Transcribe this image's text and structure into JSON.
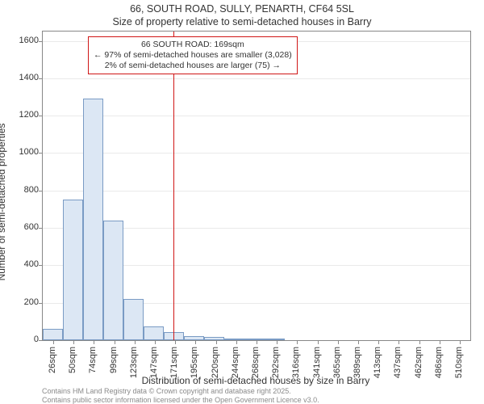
{
  "title_main": "66, SOUTH ROAD, SULLY, PENARTH, CF64 5SL",
  "title_sub": "Size of property relative to semi-detached houses in Barry",
  "ylabel": "Number of semi-detached properties",
  "xlabel": "Distribution of semi-detached houses by size in Barry",
  "footer_line1": "Contains HM Land Registry data © Crown copyright and database right 2025.",
  "footer_line2": "Contains public sector information licensed under the Open Government Licence v3.0.",
  "annotation": {
    "line1": "66 SOUTH ROAD: 169sqm",
    "line2": "← 97% of semi-detached houses are smaller (3,028)",
    "line3": "2% of semi-detached houses are larger (75) →"
  },
  "histogram": {
    "type": "histogram",
    "bar_fill": "#dce7f4",
    "bar_stroke": "#7a9bc4",
    "background_color": "#ffffff",
    "grid_color": "#888888",
    "grid_opacity": 0.18,
    "ref_line_color": "#d01616",
    "ref_line_x": 169,
    "xlim": [
      14,
      522
    ],
    "ylim": [
      0,
      1650
    ],
    "ytick_step": 200,
    "yticks": [
      0,
      200,
      400,
      600,
      800,
      1000,
      1200,
      1400,
      1600
    ],
    "xticks": [
      26,
      50,
      74,
      99,
      123,
      147,
      171,
      195,
      220,
      244,
      268,
      292,
      316,
      341,
      365,
      389,
      413,
      437,
      462,
      486,
      510
    ],
    "xtick_suffix": "sqm",
    "bin_width": 24,
    "bins": [
      {
        "start": 14,
        "value": 60
      },
      {
        "start": 38,
        "value": 750
      },
      {
        "start": 62,
        "value": 1290
      },
      {
        "start": 86,
        "value": 640
      },
      {
        "start": 110,
        "value": 220
      },
      {
        "start": 134,
        "value": 75
      },
      {
        "start": 158,
        "value": 45
      },
      {
        "start": 182,
        "value": 20
      },
      {
        "start": 206,
        "value": 18
      },
      {
        "start": 230,
        "value": 5
      },
      {
        "start": 254,
        "value": 4
      },
      {
        "start": 278,
        "value": 2
      }
    ],
    "title_fontsize": 12.5,
    "label_fontsize": 12,
    "tick_fontsize": 11,
    "annotation_fontsize": 10.5,
    "footer_fontsize": 9
  }
}
